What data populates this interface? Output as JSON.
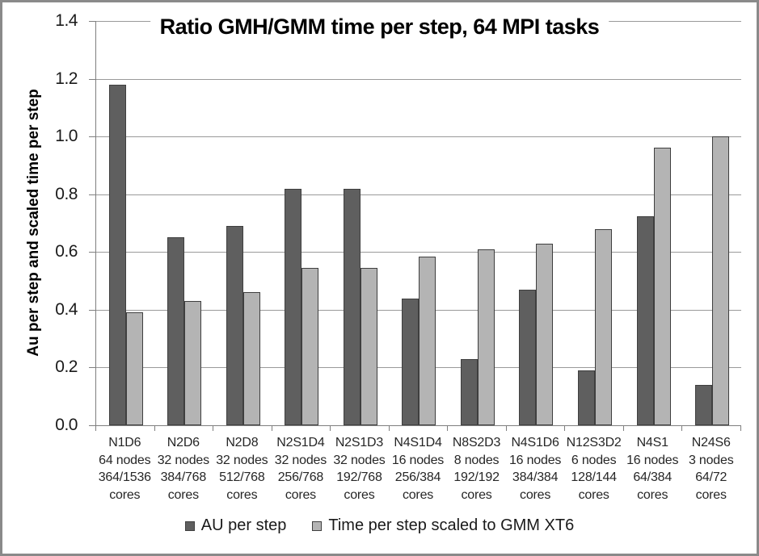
{
  "chart_data": {
    "type": "bar",
    "title": "Ratio GMH/GMM time per step, 64 MPI tasks",
    "ylabel": "Au per step and scaled time per step",
    "ylim": [
      0,
      1.4
    ],
    "ytick_step": 0.2,
    "ytick_labels": [
      "0.0",
      "0.2",
      "0.4",
      "0.6",
      "0.8",
      "1.0",
      "1.2",
      "1.4"
    ],
    "grid": true,
    "legend_position": "bottom",
    "categories": [
      [
        "N1D6",
        "64 nodes",
        "364/1536",
        "cores"
      ],
      [
        "N2D6",
        "32 nodes",
        "384/768",
        "cores"
      ],
      [
        "N2D8",
        "32 nodes",
        "512/768",
        "cores"
      ],
      [
        "N2S1D4",
        "32 nodes",
        "256/768",
        "cores"
      ],
      [
        "N2S1D3",
        "32 nodes",
        "192/768",
        "cores"
      ],
      [
        "N4S1D4",
        "16 nodes",
        "256/384",
        "cores"
      ],
      [
        "N8S2D3",
        "8 nodes",
        "192/192",
        "cores"
      ],
      [
        "N4S1D6",
        "16 nodes",
        "384/384",
        "cores"
      ],
      [
        "N12S3D2",
        "6 nodes",
        "128/144",
        "cores"
      ],
      [
        "N4S1",
        "16 nodes",
        "64/384",
        "cores"
      ],
      [
        "N24S6",
        "3 nodes",
        "64/72",
        "cores"
      ]
    ],
    "series": [
      {
        "name": "AU per step",
        "color": "#5f5f5f",
        "values": [
          1.18,
          0.65,
          0.69,
          0.82,
          0.82,
          0.44,
          0.23,
          0.47,
          0.19,
          0.725,
          0.14
        ]
      },
      {
        "name": "Time per step scaled to GMM XT6",
        "color": "#b4b4b4",
        "values": [
          0.39,
          0.43,
          0.46,
          0.545,
          0.545,
          0.585,
          0.61,
          0.63,
          0.68,
          0.96,
          1.0
        ]
      }
    ],
    "colors": {
      "bar_border": "#3f3f3f",
      "gridline": "#9a9a9a",
      "axis": "#7f7f7f"
    }
  }
}
